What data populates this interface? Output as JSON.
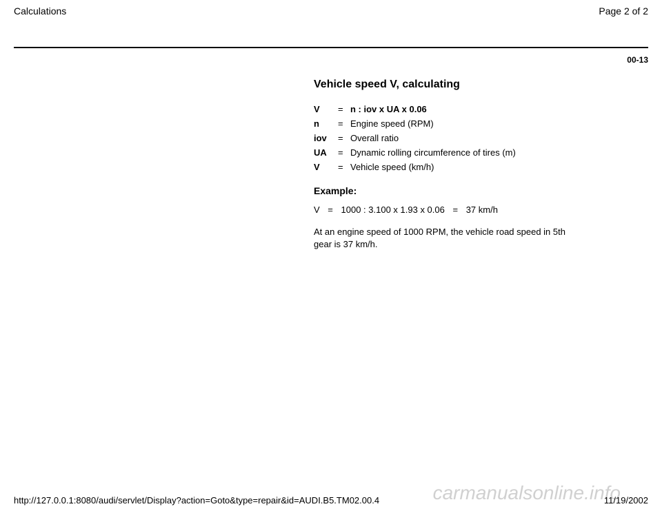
{
  "header": {
    "title": "Calculations",
    "page_label": "Page 2 of 2"
  },
  "page_number": "00-13",
  "section": {
    "title": "Vehicle speed V, calculating",
    "definitions": [
      {
        "sym": "V",
        "desc": "n : iov x UA x 0.06",
        "bold": true
      },
      {
        "sym": "n",
        "desc": "Engine speed (RPM)"
      },
      {
        "sym": "iov",
        "desc": "Overall ratio"
      },
      {
        "sym": "UA",
        "desc": "Dynamic rolling circumference of tires (m)"
      },
      {
        "sym": "V",
        "desc": "Vehicle speed (km/h)"
      }
    ],
    "example_label": "Example:",
    "example": {
      "lhs": "V",
      "eq1": "=",
      "expr": "1000 : 3.100 x 1.93 x 0.06",
      "eq2": "=",
      "result": "37 km/h"
    },
    "explanation": "At an engine speed of 1000 RPM, the vehicle road speed in 5th gear is 37 km/h."
  },
  "footer": {
    "url": "http://127.0.0.1:8080/audi/servlet/Display?action=Goto&type=repair&id=AUDI.B5.TM02.00.4",
    "date": "11/19/2002"
  },
  "watermark": "carmanualsonline.info"
}
